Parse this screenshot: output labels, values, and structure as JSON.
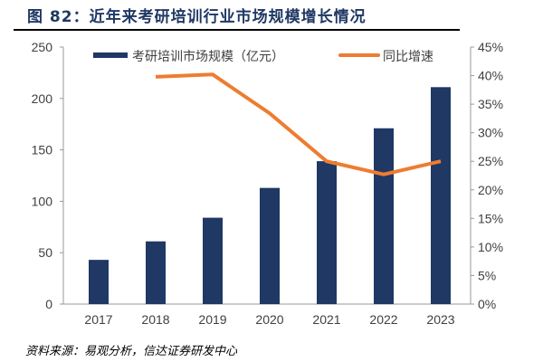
{
  "title": "图 82：近年来考研培训行业市场规模增长情况",
  "source": "资料来源：易观分析，信达证券研发中心",
  "chart_data": {
    "type": "bar+line",
    "categories": [
      "2017",
      "2018",
      "2019",
      "2020",
      "2021",
      "2022",
      "2023"
    ],
    "series": [
      {
        "name": "考研培训市场规模（亿元）",
        "type": "bar",
        "axis": "left",
        "color": "#1f3864",
        "values": [
          43,
          61,
          84,
          113,
          139,
          171,
          211
        ]
      },
      {
        "name": "同比增速",
        "type": "line",
        "axis": "right",
        "color": "#ed7d31",
        "values": [
          null,
          39.8,
          40.2,
          33.4,
          25.0,
          22.7,
          25.0
        ]
      }
    ],
    "left_axis": {
      "ylim": [
        0,
        250
      ],
      "ticks": [
        "0",
        "50",
        "100",
        "150",
        "200",
        "250"
      ]
    },
    "right_axis": {
      "ylim": [
        0,
        45
      ],
      "ticks": [
        "0%",
        "5%",
        "10%",
        "15%",
        "20%",
        "25%",
        "30%",
        "35%",
        "40%",
        "45%"
      ]
    },
    "legend_placement": "top",
    "grid": false
  }
}
